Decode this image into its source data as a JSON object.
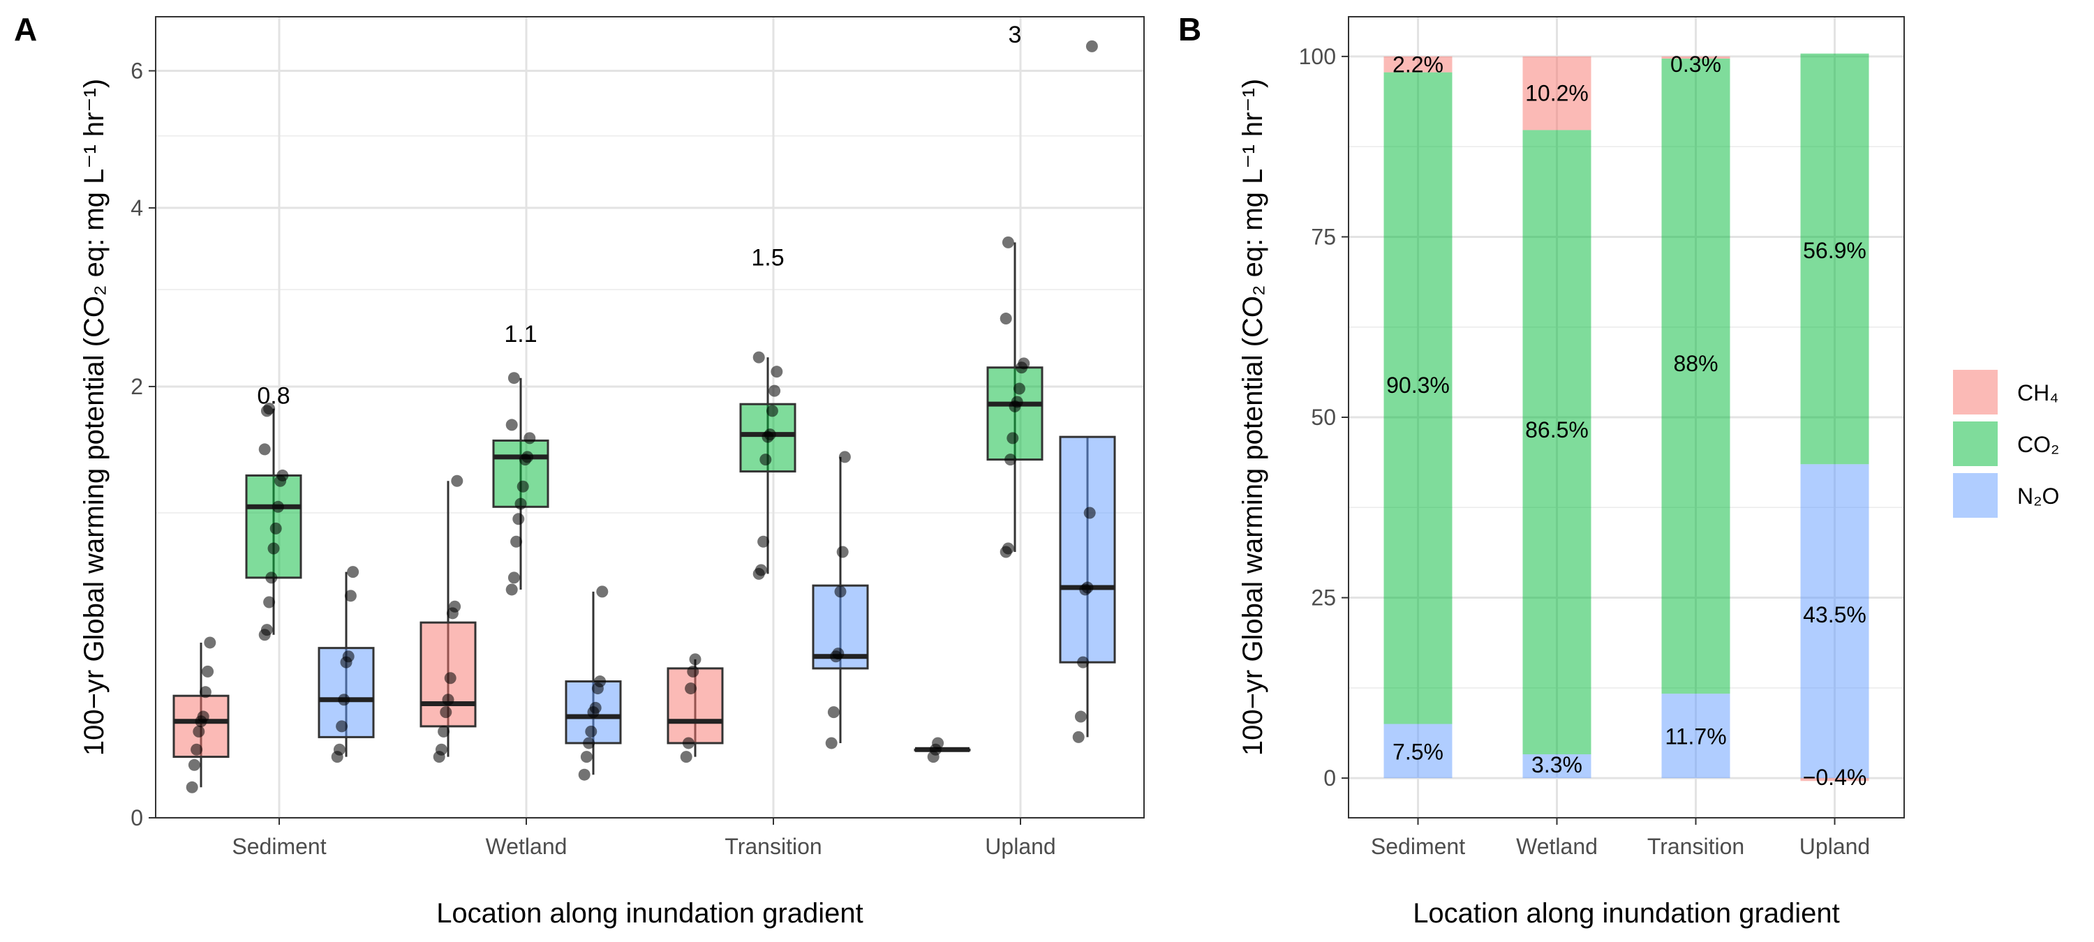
{
  "colors": {
    "CH4": "#F8766D",
    "CO2": "#00BA38",
    "N2O": "#619CFF",
    "grid": "#E3E3E3",
    "axis_text": "#4D4D4D",
    "text": "#000000"
  },
  "chart_data": [
    {
      "panel": "A",
      "type": "box",
      "xlabel": "Location along inundation gradient",
      "ylabel": "100−yr Global warming potential (CO₂ eq: mg L⁻¹ hr⁻¹)",
      "y_scale": "sqrt",
      "ylim": [
        0,
        6.9
      ],
      "y_ticks": [
        0,
        2,
        4,
        6
      ],
      "y_tick_labels": [
        "0",
        "2",
        "4",
        "6"
      ],
      "categories": [
        "Sediment",
        "Wetland",
        "Transition",
        "Upland"
      ],
      "series": [
        {
          "name": "CH₄",
          "boxes": [
            {
              "category": "Sediment",
              "min": 0.01,
              "q1": 0.04,
              "median": 0.1,
              "q3": 0.16,
              "max": 0.33
            },
            {
              "category": "Wetland",
              "min": 0.04,
              "q1": 0.09,
              "median": 0.14,
              "q3": 0.41,
              "max": 1.22
            },
            {
              "category": "Transition",
              "min": 0.04,
              "q1": 0.06,
              "median": 0.1,
              "q3": 0.24,
              "max": 0.27
            },
            {
              "category": "Upland",
              "min": 0.05,
              "q1": 0.05,
              "median": 0.05,
              "q3": 0.05,
              "max": 0.05
            }
          ],
          "points": [
            {
              "category": "Sediment",
              "values": [
                0.01,
                0.03,
                0.05,
                0.08,
                0.1,
                0.11,
                0.17,
                0.23,
                0.33
              ]
            },
            {
              "category": "Wetland",
              "values": [
                0.04,
                0.05,
                0.08,
                0.12,
                0.15,
                0.21,
                0.45,
                0.48,
                1.22
              ]
            },
            {
              "category": "Transition",
              "values": [
                0.04,
                0.06,
                0.18,
                0.23,
                0.27
              ]
            },
            {
              "category": "Upland",
              "values": [
                0.04,
                0.05,
                0.06
              ]
            }
          ]
        },
        {
          "name": "CO₂",
          "boxes": [
            {
              "category": "Sediment",
              "min": 0.36,
              "q1": 0.62,
              "median": 1.04,
              "q3": 1.26,
              "max": 1.8
            },
            {
              "category": "Wetland",
              "min": 0.56,
              "q1": 1.04,
              "median": 1.4,
              "q3": 1.53,
              "max": 2.08
            },
            {
              "category": "Transition",
              "min": 0.64,
              "q1": 1.29,
              "median": 1.58,
              "q3": 1.84,
              "max": 2.28
            },
            {
              "category": "Upland",
              "min": 0.76,
              "q1": 1.38,
              "median": 1.84,
              "q3": 2.18,
              "max": 3.56
            }
          ],
          "points": [
            {
              "category": "Sediment",
              "values": [
                0.36,
                0.38,
                0.5,
                0.62,
                0.78,
                0.9,
                1.04,
                1.22,
                1.26,
                1.46,
                1.78,
                1.8
              ]
            },
            {
              "category": "Wetland",
              "values": [
                0.56,
                0.62,
                0.82,
                0.96,
                1.06,
                1.18,
                1.38,
                1.4,
                1.55,
                1.66,
                2.08
              ]
            },
            {
              "category": "Transition",
              "values": [
                0.64,
                0.66,
                0.82,
                1.38,
                1.56,
                1.58,
                1.78,
                1.96,
                2.14,
                2.28
              ]
            },
            {
              "category": "Upland",
              "values": [
                0.76,
                0.78,
                1.38,
                1.55,
                1.82,
                1.86,
                1.98,
                2.18,
                2.22,
                2.68,
                3.56
              ]
            }
          ]
        },
        {
          "name": "N₂O",
          "boxes": [
            {
              "category": "Sediment",
              "min": 0.04,
              "q1": 0.07,
              "median": 0.15,
              "q3": 0.31,
              "max": 0.65
            },
            {
              "category": "Wetland",
              "min": 0.02,
              "q1": 0.06,
              "median": 0.11,
              "q3": 0.2,
              "max": 0.55
            },
            {
              "category": "Transition",
              "min": 0.06,
              "q1": 0.24,
              "median": 0.28,
              "q3": 0.58,
              "max": 1.4
            },
            {
              "category": "Upland",
              "min": 0.07,
              "q1": 0.26,
              "median": 0.57,
              "q3": 1.56,
              "max": 1.56
            }
          ],
          "points": [
            {
              "category": "Sediment",
              "values": [
                0.04,
                0.05,
                0.09,
                0.15,
                0.26,
                0.28,
                0.53,
                0.65
              ]
            },
            {
              "category": "Wetland",
              "values": [
                0.02,
                0.04,
                0.06,
                0.08,
                0.12,
                0.13,
                0.18,
                0.2,
                0.55
              ]
            },
            {
              "category": "Transition",
              "values": [
                0.06,
                0.12,
                0.28,
                0.29,
                0.55,
                0.76,
                1.4
              ]
            },
            {
              "category": "Upland",
              "values": [
                0.07,
                0.11,
                0.26,
                0.56,
                0.57,
                1.0,
                6.4
              ]
            }
          ]
        }
      ],
      "annotations": [
        {
          "category": "Sediment",
          "text": "0.8",
          "y": 1.92
        },
        {
          "category": "Wetland",
          "text": "1.1",
          "y": 2.52
        },
        {
          "category": "Transition",
          "text": "1.5",
          "y": 3.38
        },
        {
          "category": "Upland",
          "text": "3",
          "y": 6.6
        }
      ]
    },
    {
      "panel": "B",
      "type": "stacked_bar",
      "xlabel": "Location along inundation gradient",
      "ylabel": "100−yr Global warming potential (CO₂ eq: mg L⁻¹ hr⁻¹)",
      "ylim": [
        -5.5,
        105.5
      ],
      "y_ticks": [
        0,
        25,
        50,
        75,
        100
      ],
      "y_tick_labels": [
        "0",
        "25",
        "50",
        "75",
        "100"
      ],
      "categories": [
        "Sediment",
        "Wetland",
        "Transition",
        "Upland"
      ],
      "series": [
        {
          "name": "CH₄",
          "values": [
            2.2,
            10.2,
            0.3,
            -0.4
          ],
          "labels": [
            "2.2%",
            "10.2%",
            "0.3%",
            "−0.4%"
          ]
        },
        {
          "name": "CO₂",
          "values": [
            90.3,
            86.5,
            88,
            56.9
          ],
          "labels": [
            "90.3%",
            "86.5%",
            "88%",
            "56.9%"
          ]
        },
        {
          "name": "N₂O",
          "values": [
            7.5,
            3.3,
            11.7,
            43.5
          ],
          "labels": [
            "7.5%",
            "3.3%",
            "11.7%",
            "43.5%"
          ]
        }
      ],
      "legend": {
        "position": "right",
        "items": [
          "CH₄",
          "CO₂",
          "N₂O"
        ]
      }
    }
  ]
}
